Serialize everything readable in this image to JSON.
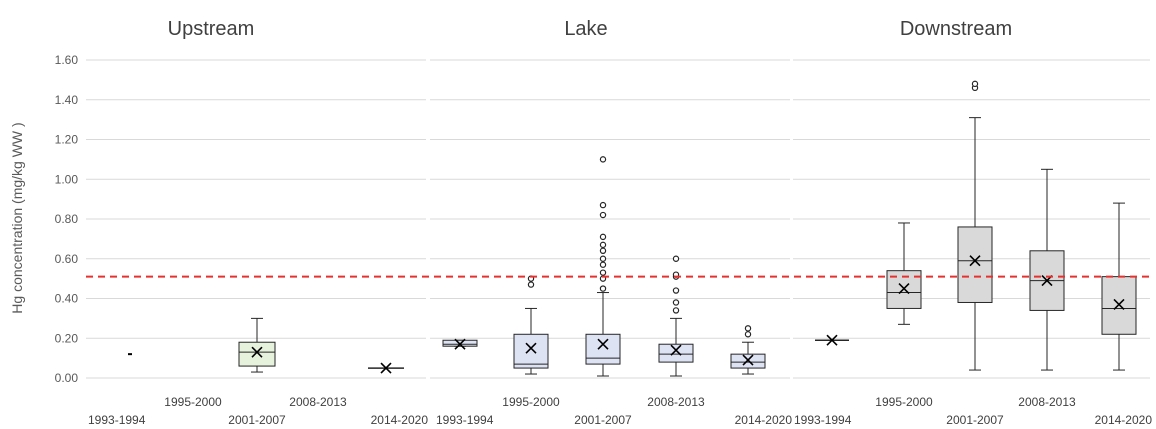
{
  "chart_data": {
    "type": "box",
    "ylabel": "Hg concentration   (mg/kg WW )",
    "ylim": [
      0,
      1.6
    ],
    "yticks": [
      "0.00",
      "0.20",
      "0.40",
      "0.60",
      "0.80",
      "1.00",
      "1.20",
      "1.40",
      "1.60"
    ],
    "yticks_values": [
      0,
      0.2,
      0.4,
      0.6,
      0.8,
      1.0,
      1.2,
      1.4,
      1.6
    ],
    "grid": true,
    "reference_line": {
      "value": 0.51,
      "color": "#e8312f",
      "style": "dashed"
    },
    "categories": [
      "1993-1994",
      "1995-2000",
      "2001-2007",
      "2008-2013",
      "2014-2020"
    ],
    "panels": [
      {
        "title": "Upstream",
        "box_color": "#e6f2dc",
        "boxes": [
          {
            "category": "1993-1994",
            "min": 0.12,
            "q1": 0.12,
            "median": 0.12,
            "q3": 0.12,
            "max": 0.12,
            "mean": null,
            "outliers": []
          },
          null,
          {
            "category": "2001-2007",
            "min": 0.03,
            "q1": 0.06,
            "median": 0.13,
            "q3": 0.18,
            "max": 0.3,
            "mean": 0.13,
            "outliers": []
          },
          null,
          {
            "category": "2014-2020",
            "min": 0.05,
            "q1": 0.05,
            "median": 0.05,
            "q3": 0.05,
            "max": 0.05,
            "mean": 0.05,
            "outliers": []
          }
        ]
      },
      {
        "title": "Lake",
        "box_color": "#dde3f3",
        "boxes": [
          {
            "category": "1993-1994",
            "min": 0.16,
            "q1": 0.16,
            "median": 0.17,
            "q3": 0.19,
            "max": 0.19,
            "mean": 0.17,
            "outliers": []
          },
          {
            "category": "1995-2000",
            "min": 0.02,
            "q1": 0.05,
            "median": 0.07,
            "q3": 0.22,
            "max": 0.35,
            "mean": 0.15,
            "outliers": [
              0.47,
              0.5
            ]
          },
          {
            "category": "2001-2007",
            "min": 0.01,
            "q1": 0.07,
            "median": 0.1,
            "q3": 0.22,
            "max": 0.43,
            "mean": 0.17,
            "outliers": [
              0.45,
              0.5,
              0.53,
              0.57,
              0.6,
              0.64,
              0.67,
              0.71,
              0.82,
              0.87,
              1.1
            ]
          },
          {
            "category": "2008-2013",
            "min": 0.01,
            "q1": 0.08,
            "median": 0.12,
            "q3": 0.17,
            "max": 0.3,
            "mean": 0.14,
            "outliers": [
              0.34,
              0.38,
              0.44,
              0.51,
              0.52,
              0.6
            ]
          },
          {
            "category": "2014-2020",
            "min": 0.02,
            "q1": 0.05,
            "median": 0.08,
            "q3": 0.12,
            "max": 0.18,
            "mean": 0.09,
            "outliers": [
              0.22,
              0.25
            ]
          }
        ]
      },
      {
        "title": "Downstream",
        "box_color": "#d9d9d9",
        "boxes": [
          {
            "category": "1993-1994",
            "min": 0.19,
            "q1": 0.19,
            "median": 0.19,
            "q3": 0.19,
            "max": 0.19,
            "mean": 0.19,
            "outliers": []
          },
          {
            "category": "1995-2000",
            "min": 0.27,
            "q1": 0.35,
            "median": 0.43,
            "q3": 0.54,
            "max": 0.78,
            "mean": 0.45,
            "outliers": []
          },
          {
            "category": "2001-2007",
            "min": 0.04,
            "q1": 0.38,
            "median": 0.59,
            "q3": 0.76,
            "max": 1.31,
            "mean": 0.59,
            "outliers": [
              1.46,
              1.48
            ]
          },
          {
            "category": "2008-2013",
            "min": 0.04,
            "q1": 0.34,
            "median": 0.49,
            "q3": 0.64,
            "max": 1.05,
            "mean": 0.49,
            "outliers": []
          },
          {
            "category": "2014-2020",
            "min": 0.04,
            "q1": 0.22,
            "median": 0.35,
            "q3": 0.51,
            "max": 0.88,
            "mean": 0.37,
            "outliers": []
          }
        ]
      }
    ]
  }
}
